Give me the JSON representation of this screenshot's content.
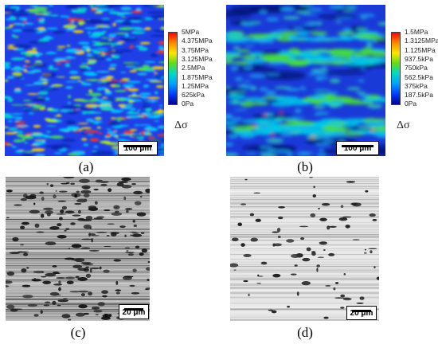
{
  "panels": {
    "a": {
      "caption": "(a)",
      "colorbar": [
        "5MPa",
        "4.375MPa",
        "3.75MPa",
        "3.125MPa",
        "2.5MPa",
        "1.875MPa",
        "1.25MPa",
        "625kPa",
        "0Pa"
      ],
      "symbol": "Δσ",
      "scale": "100 μm"
    },
    "b": {
      "caption": "(b)",
      "colorbar": [
        "1.5MPa",
        "1.3125MPa",
        "1.125MPa",
        "937.5kPa",
        "750kPa",
        "562.5kPa",
        "375kPa",
        "187.5kPa",
        "0Pa"
      ],
      "symbol": "Δσ",
      "scale": "100 μm"
    },
    "c": {
      "caption": "(c)",
      "scale": "20 μm"
    },
    "d": {
      "caption": "(d)",
      "scale": "20 μm"
    }
  }
}
